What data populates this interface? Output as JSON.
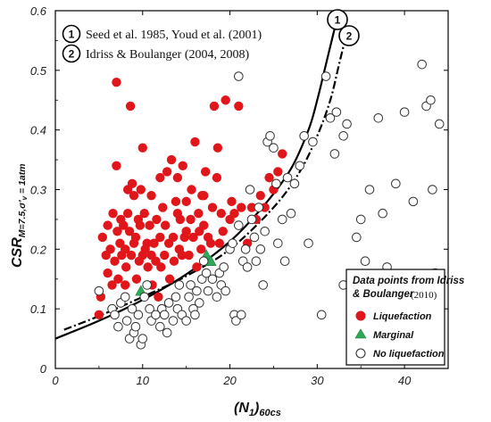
{
  "chart_data": {
    "type": "scatter",
    "xlim": [
      0,
      45
    ],
    "ylim": [
      0,
      0.6
    ],
    "x_ticks": [
      "0",
      "10",
      "20",
      "30",
      "40"
    ],
    "y_ticks": [
      "0",
      "0.1",
      "0.2",
      "0.3",
      "0.4",
      "0.5",
      "0.6"
    ],
    "xlabel": {
      "main": "(N",
      "sub1": "1",
      "close": ")",
      "sub2": "60cs"
    },
    "ylabel": {
      "main": "CSR",
      "sub": "M=7.5,σ'",
      "sub2": "v",
      "tail": " = 1atm"
    },
    "curves": [
      {
        "id": "1",
        "label": "Seed et al. 1985, Youd et al. (2001)",
        "style": "solid",
        "x": [
          0,
          5,
          10,
          15,
          20,
          24,
          27,
          29,
          30,
          31,
          32,
          32.6
        ],
        "y": [
          0.05,
          0.08,
          0.115,
          0.158,
          0.213,
          0.275,
          0.335,
          0.4,
          0.45,
          0.51,
          0.57,
          0.6
        ]
      },
      {
        "id": "2",
        "label": "Idriss & Boulanger (2004, 2008)",
        "style": "dashdot",
        "x": [
          1,
          5,
          10,
          15,
          20,
          25,
          28,
          30,
          31.5,
          32.5,
          33.5
        ],
        "y": [
          0.065,
          0.088,
          0.12,
          0.155,
          0.2,
          0.27,
          0.33,
          0.39,
          0.45,
          0.51,
          0.57
        ]
      }
    ],
    "legend": {
      "title_line1": "Data points from Idriss",
      "title_line2": "& Boulanger",
      "title_year": "(2010)",
      "position": "bottom-right",
      "items": [
        {
          "name": "Liquefaction",
          "marker": "filled-circle",
          "color": "#e0161b"
        },
        {
          "name": "Marginal",
          "marker": "triangle",
          "color": "#2eaa57"
        },
        {
          "name": "No liquefaction",
          "marker": "open-circle",
          "color": "#333333"
        }
      ]
    },
    "series": [
      {
        "name": "Liquefaction",
        "color": "#e0161b",
        "points": [
          [
            5,
            0.09
          ],
          [
            5.2,
            0.12
          ],
          [
            5.4,
            0.22
          ],
          [
            5.8,
            0.19
          ],
          [
            6,
            0.16
          ],
          [
            6,
            0.24
          ],
          [
            6.3,
            0.2
          ],
          [
            6.5,
            0.14
          ],
          [
            6.6,
            0.26
          ],
          [
            6.8,
            0.18
          ],
          [
            7,
            0.48
          ],
          [
            7,
            0.34
          ],
          [
            7.1,
            0.23
          ],
          [
            7.2,
            0.15
          ],
          [
            7.4,
            0.21
          ],
          [
            7.5,
            0.25
          ],
          [
            7.6,
            0.19
          ],
          [
            7.8,
            0.24
          ],
          [
            8,
            0.14
          ],
          [
            8,
            0.2
          ],
          [
            8.1,
            0.17
          ],
          [
            8.3,
            0.26
          ],
          [
            8.3,
            0.3
          ],
          [
            8.5,
            0.23
          ],
          [
            8.6,
            0.44
          ],
          [
            8.7,
            0.19
          ],
          [
            8.8,
            0.31
          ],
          [
            9,
            0.29
          ],
          [
            9,
            0.21
          ],
          [
            9.2,
            0.22
          ],
          [
            9.3,
            0.15
          ],
          [
            9.5,
            0.25
          ],
          [
            9.6,
            0.18
          ],
          [
            9.7,
            0.24
          ],
          [
            9.8,
            0.3
          ],
          [
            10,
            0.19
          ],
          [
            10,
            0.37
          ],
          [
            10.2,
            0.26
          ],
          [
            10.3,
            0.2
          ],
          [
            10.5,
            0.21
          ],
          [
            10.6,
            0.17
          ],
          [
            10.8,
            0.24
          ],
          [
            11,
            0.19
          ],
          [
            11,
            0.29
          ],
          [
            11.1,
            0.14
          ],
          [
            11.3,
            0.21
          ],
          [
            11.5,
            0.18
          ],
          [
            11.6,
            0.25
          ],
          [
            11.8,
            0.12
          ],
          [
            12,
            0.32
          ],
          [
            12,
            0.22
          ],
          [
            12.1,
            0.17
          ],
          [
            12.3,
            0.27
          ],
          [
            12.5,
            0.19
          ],
          [
            12.6,
            0.24
          ],
          [
            12.8,
            0.33
          ],
          [
            13,
            0.21
          ],
          [
            13.1,
            0.15
          ],
          [
            13.3,
            0.35
          ],
          [
            13.5,
            0.22
          ],
          [
            13.6,
            0.18
          ],
          [
            13.8,
            0.28
          ],
          [
            14,
            0.26
          ],
          [
            14,
            0.32
          ],
          [
            14.2,
            0.2
          ],
          [
            14.3,
            0.25
          ],
          [
            14.5,
            0.19
          ],
          [
            14.6,
            0.34
          ],
          [
            14.8,
            0.22
          ],
          [
            15,
            0.23
          ],
          [
            15,
            0.28
          ],
          [
            15.3,
            0.19
          ],
          [
            15.5,
            0.25
          ],
          [
            15.6,
            0.3
          ],
          [
            15.8,
            0.22
          ],
          [
            16,
            0.38
          ],
          [
            16.2,
            0.17
          ],
          [
            16.4,
            0.26
          ],
          [
            16.5,
            0.23
          ],
          [
            16.7,
            0.2
          ],
          [
            16.8,
            0.29
          ],
          [
            17,
            0.24
          ],
          [
            17.2,
            0.33
          ],
          [
            17.5,
            0.22
          ],
          [
            17.8,
            0.21
          ],
          [
            18,
            0.27
          ],
          [
            18.2,
            0.44
          ],
          [
            18.5,
            0.32
          ],
          [
            18.6,
            0.37
          ],
          [
            18.8,
            0.21
          ],
          [
            19,
            0.26
          ],
          [
            19.2,
            0.23
          ],
          [
            19.5,
            0.45
          ],
          [
            20,
            0.25
          ],
          [
            20.2,
            0.28
          ],
          [
            20.5,
            0.26
          ],
          [
            21,
            0.44
          ],
          [
            21.3,
            0.27
          ],
          [
            22,
            0.21
          ],
          [
            22.5,
            0.27
          ],
          [
            23,
            0.25
          ],
          [
            23.5,
            0.29
          ],
          [
            24,
            0.27
          ],
          [
            24.5,
            0.32
          ],
          [
            25,
            0.3
          ],
          [
            25.5,
            0.33
          ],
          [
            26,
            0.36
          ],
          [
            17,
            0.29
          ]
        ]
      },
      {
        "name": "Marginal",
        "color": "#2eaa57",
        "points": [
          [
            9.8,
            0.13
          ],
          [
            17.3,
            0.19
          ],
          [
            17.8,
            0.18
          ]
        ]
      },
      {
        "name": "No liquefaction",
        "color": "#333333",
        "points": [
          [
            5,
            0.13
          ],
          [
            6.5,
            0.1
          ],
          [
            6.8,
            0.09
          ],
          [
            7.2,
            0.07
          ],
          [
            7.5,
            0.11
          ],
          [
            8,
            0.12
          ],
          [
            8.2,
            0.08
          ],
          [
            8.5,
            0.05
          ],
          [
            8.8,
            0.1
          ],
          [
            9,
            0.06
          ],
          [
            9.2,
            0.07
          ],
          [
            9.5,
            0.09
          ],
          [
            9.8,
            0.04
          ],
          [
            10,
            0.05
          ],
          [
            10.2,
            0.12
          ],
          [
            10.5,
            0.14
          ],
          [
            10.8,
            0.1
          ],
          [
            11,
            0.08
          ],
          [
            11.5,
            0.09
          ],
          [
            12,
            0.07
          ],
          [
            12.2,
            0.1
          ],
          [
            12.5,
            0.09
          ],
          [
            12.8,
            0.06
          ],
          [
            13,
            0.11
          ],
          [
            13.5,
            0.08
          ],
          [
            13.8,
            0.12
          ],
          [
            14,
            0.1
          ],
          [
            14.2,
            0.14
          ],
          [
            14.5,
            0.09
          ],
          [
            15,
            0.08
          ],
          [
            15.3,
            0.12
          ],
          [
            15.5,
            0.14
          ],
          [
            15.8,
            0.1
          ],
          [
            16,
            0.09
          ],
          [
            16.2,
            0.13
          ],
          [
            16.5,
            0.11
          ],
          [
            16.8,
            0.15
          ],
          [
            17,
            0.18
          ],
          [
            17.3,
            0.16
          ],
          [
            17.5,
            0.13
          ],
          [
            18,
            0.15
          ],
          [
            18.5,
            0.12
          ],
          [
            18.8,
            0.16
          ],
          [
            19,
            0.14
          ],
          [
            19.3,
            0.17
          ],
          [
            19.5,
            0.13
          ],
          [
            20,
            0.2
          ],
          [
            20.3,
            0.21
          ],
          [
            20.5,
            0.09
          ],
          [
            20.7,
            0.08
          ],
          [
            21,
            0.24
          ],
          [
            21.3,
            0.09
          ],
          [
            21.5,
            0.18
          ],
          [
            21.8,
            0.2
          ],
          [
            22,
            0.17
          ],
          [
            22.3,
            0.3
          ],
          [
            22.5,
            0.25
          ],
          [
            22.8,
            0.22
          ],
          [
            23,
            0.18
          ],
          [
            23.3,
            0.27
          ],
          [
            23.5,
            0.2
          ],
          [
            23.8,
            0.14
          ],
          [
            24,
            0.23
          ],
          [
            24.3,
            0.38
          ],
          [
            24.6,
            0.39
          ],
          [
            25,
            0.37
          ],
          [
            25.3,
            0.31
          ],
          [
            25.5,
            0.21
          ],
          [
            26,
            0.25
          ],
          [
            26.3,
            0.18
          ],
          [
            26.6,
            0.32
          ],
          [
            27,
            0.26
          ],
          [
            27.4,
            0.31
          ],
          [
            28,
            0.34
          ],
          [
            28.5,
            0.39
          ],
          [
            29,
            0.21
          ],
          [
            29.5,
            0.38
          ],
          [
            21,
            0.49
          ],
          [
            31,
            0.49
          ],
          [
            31.5,
            0.42
          ],
          [
            32,
            0.36
          ],
          [
            32.2,
            0.43
          ],
          [
            33,
            0.39
          ],
          [
            33.4,
            0.41
          ],
          [
            34.5,
            0.22
          ],
          [
            35,
            0.25
          ],
          [
            35.5,
            0.18
          ],
          [
            36,
            0.3
          ],
          [
            36.5,
            0.15
          ],
          [
            37,
            0.42
          ],
          [
            37.5,
            0.26
          ],
          [
            38,
            0.17
          ],
          [
            39,
            0.31
          ],
          [
            40,
            0.43
          ],
          [
            40.5,
            0.15
          ],
          [
            41,
            0.28
          ],
          [
            42,
            0.51
          ],
          [
            42.5,
            0.44
          ],
          [
            43,
            0.45
          ],
          [
            43.5,
            0.16
          ],
          [
            43.2,
            0.3
          ],
          [
            44,
            0.41
          ],
          [
            30.5,
            0.09
          ],
          [
            33,
            0.14
          ]
        ]
      }
    ]
  }
}
